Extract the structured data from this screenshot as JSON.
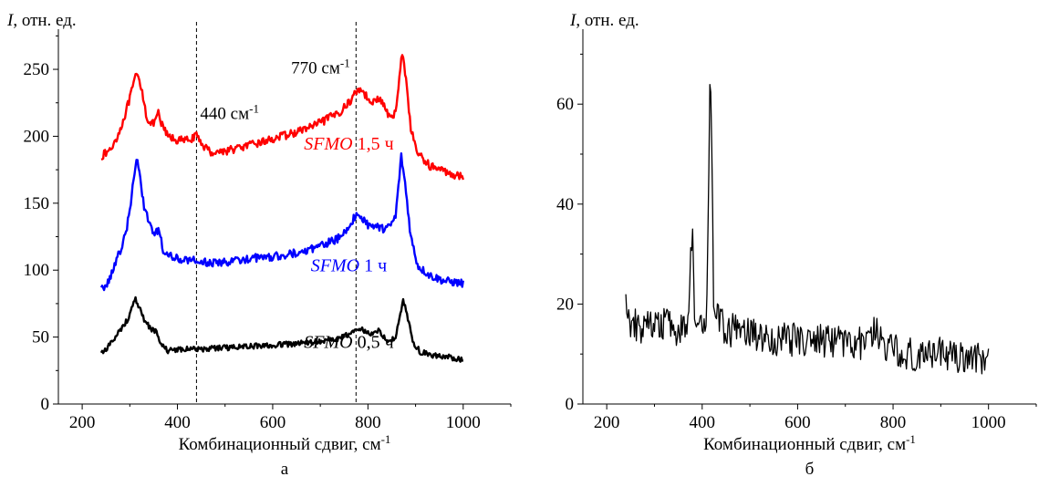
{
  "chart_data": [
    {
      "type": "line",
      "panel_label": "а",
      "ylabel": "I, отн. ед.",
      "xlabel": "Комбинационный сдвиг, см⁻¹",
      "xlim": [
        150,
        1100
      ],
      "ylim": [
        0,
        280
      ],
      "xticks": [
        200,
        400,
        600,
        800,
        1000
      ],
      "yticks": [
        0,
        50,
        100,
        150,
        200,
        250
      ],
      "vlines": [
        440,
        775
      ],
      "annotations": [
        {
          "text": "440 см⁻¹",
          "x": 440,
          "y": 213
        },
        {
          "text": "770 см⁻¹",
          "x": 770,
          "y": 247
        }
      ],
      "series": [
        {
          "name": "SFMO 1,5 ч",
          "color": "#ff0000",
          "label_at": [
            760,
            190
          ],
          "noise": 3,
          "points": [
            [
              240,
              185
            ],
            [
              260,
              190
            ],
            [
              280,
              205
            ],
            [
              300,
              228
            ],
            [
              310,
              242
            ],
            [
              315,
              246
            ],
            [
              325,
              236
            ],
            [
              335,
              215
            ],
            [
              345,
              208
            ],
            [
              355,
              212
            ],
            [
              360,
              217
            ],
            [
              365,
              210
            ],
            [
              380,
              200
            ],
            [
              400,
              197
            ],
            [
              420,
              197
            ],
            [
              440,
              200
            ],
            [
              455,
              193
            ],
            [
              470,
              188
            ],
            [
              500,
              189
            ],
            [
              550,
              193
            ],
            [
              600,
              198
            ],
            [
              650,
              203
            ],
            [
              700,
              210
            ],
            [
              740,
              218
            ],
            [
              760,
              225
            ],
            [
              775,
              233
            ],
            [
              785,
              236
            ],
            [
              800,
              228
            ],
            [
              815,
              226
            ],
            [
              825,
              228
            ],
            [
              835,
              222
            ],
            [
              848,
              212
            ],
            [
              858,
              218
            ],
            [
              866,
              245
            ],
            [
              872,
              262
            ],
            [
              880,
              244
            ],
            [
              890,
              205
            ],
            [
              905,
              187
            ],
            [
              930,
              178
            ],
            [
              960,
              174
            ],
            [
              1000,
              169
            ]
          ]
        },
        {
          "name": "SFMO 1 ч",
          "color": "#0000ff",
          "label_at": [
            760,
            99
          ],
          "noise": 3,
          "points": [
            [
              240,
              85
            ],
            [
              255,
              92
            ],
            [
              270,
              105
            ],
            [
              290,
              125
            ],
            [
              300,
              145
            ],
            [
              310,
              172
            ],
            [
              315,
              182
            ],
            [
              320,
              173
            ],
            [
              330,
              148
            ],
            [
              345,
              131
            ],
            [
              355,
              128
            ],
            [
              362,
              129
            ],
            [
              370,
              115
            ],
            [
              390,
              109
            ],
            [
              420,
              108
            ],
            [
              450,
              106
            ],
            [
              480,
              105
            ],
            [
              520,
              107
            ],
            [
              560,
              109
            ],
            [
              600,
              110
            ],
            [
              650,
              113
            ],
            [
              700,
              118
            ],
            [
              740,
              124
            ],
            [
              760,
              132
            ],
            [
              775,
              142
            ],
            [
              785,
              139
            ],
            [
              800,
              134
            ],
            [
              815,
              133
            ],
            [
              830,
              131
            ],
            [
              845,
              132
            ],
            [
              858,
              140
            ],
            [
              866,
              170
            ],
            [
              870,
              185
            ],
            [
              878,
              165
            ],
            [
              890,
              125
            ],
            [
              905,
              103
            ],
            [
              930,
              96
            ],
            [
              960,
              92
            ],
            [
              1000,
              90
            ]
          ]
        },
        {
          "name": "SFMO 0,5 ч",
          "color": "#000000",
          "label_at": [
            760,
            42
          ],
          "noise": 2,
          "points": [
            [
              240,
              38
            ],
            [
              260,
              45
            ],
            [
              280,
              55
            ],
            [
              295,
              63
            ],
            [
              305,
              72
            ],
            [
              312,
              78
            ],
            [
              320,
              72
            ],
            [
              330,
              63
            ],
            [
              345,
              56
            ],
            [
              355,
              54
            ],
            [
              365,
              45
            ],
            [
              380,
              40
            ],
            [
              400,
              41
            ],
            [
              450,
              41
            ],
            [
              500,
              42
            ],
            [
              550,
              43
            ],
            [
              600,
              44
            ],
            [
              650,
              45
            ],
            [
              700,
              47
            ],
            [
              740,
              49
            ],
            [
              760,
              52
            ],
            [
              775,
              56
            ],
            [
              790,
              55
            ],
            [
              805,
              52
            ],
            [
              820,
              55
            ],
            [
              835,
              50
            ],
            [
              848,
              47
            ],
            [
              858,
              50
            ],
            [
              868,
              68
            ],
            [
              874,
              78
            ],
            [
              882,
              67
            ],
            [
              895,
              46
            ],
            [
              910,
              39
            ],
            [
              940,
              36
            ],
            [
              970,
              35
            ],
            [
              1000,
              33
            ]
          ]
        }
      ]
    },
    {
      "type": "line",
      "panel_label": "б",
      "ylabel": "I, отн. ед.",
      "xlabel": "Комбинационный сдвиг, см⁻¹",
      "xlim": [
        150,
        1100
      ],
      "ylim": [
        0,
        75
      ],
      "xticks": [
        200,
        400,
        600,
        800,
        1000
      ],
      "yticks": [
        0,
        20,
        40,
        60
      ],
      "series": [
        {
          "color": "#000000",
          "noise": 3.5,
          "points": [
            [
              240,
              22
            ],
            [
              250,
              16
            ],
            [
              280,
              15
            ],
            [
              300,
              15
            ],
            [
              320,
              16
            ],
            [
              340,
              15
            ],
            [
              360,
              15
            ],
            [
              370,
              16
            ],
            [
              376,
              28
            ],
            [
              380,
              34
            ],
            [
              384,
              20
            ],
            [
              390,
              15
            ],
            [
              405,
              15
            ],
            [
              410,
              20
            ],
            [
              414,
              50
            ],
            [
              417,
              70
            ],
            [
              420,
              50
            ],
            [
              424,
              22
            ],
            [
              430,
              17
            ],
            [
              450,
              15
            ],
            [
              500,
              14
            ],
            [
              550,
              13
            ],
            [
              600,
              13
            ],
            [
              650,
              12.5
            ],
            [
              700,
              12
            ],
            [
              740,
              12
            ],
            [
              748,
              18
            ],
            [
              755,
              15
            ],
            [
              780,
              12
            ],
            [
              800,
              11
            ],
            [
              850,
              10
            ],
            [
              900,
              10
            ],
            [
              950,
              9.5
            ],
            [
              1000,
              9.5
            ]
          ]
        }
      ]
    }
  ]
}
